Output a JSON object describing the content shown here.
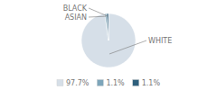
{
  "chart_data": {
    "type": "pie",
    "categories": [
      "WHITE",
      "ASIAN",
      "BLACK"
    ],
    "values": [
      97.7,
      1.1,
      1.1
    ],
    "value_labels": [
      "97.7%",
      "1.1%",
      "1.1%"
    ],
    "colors": [
      "#d6dfe8",
      "#7da5ba",
      "#2e5f7c"
    ],
    "legend": "bottom"
  }
}
